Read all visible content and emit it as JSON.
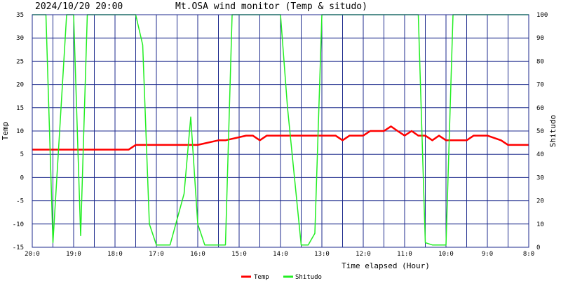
{
  "chart_data": {
    "type": "line",
    "title": "Mt.OSA wind monitor (Temp & situdo)",
    "timestamp": "2024/10/20 20:00",
    "xlabel": "Time elapsed (Hour)",
    "ylabel_left": "Temp",
    "ylabel_right": "Shitudo",
    "x_ticks": [
      "20:0",
      "19:0",
      "18:0",
      "17:0",
      "16:0",
      "15:0",
      "14:0",
      "13:0",
      "12:0",
      "11:0",
      "10:0",
      "9:0",
      "8:0"
    ],
    "x_range": [
      0,
      12
    ],
    "ylim_left": [
      -15,
      35
    ],
    "y_ticks_left": [
      35,
      30,
      25,
      20,
      15,
      10,
      5,
      0,
      -5,
      -10,
      -15
    ],
    "ylim_right": [
      0,
      100
    ],
    "y_ticks_right": [
      100,
      90,
      80,
      70,
      60,
      50,
      40,
      30,
      20,
      10,
      0
    ],
    "grid": true,
    "legend_placement": "bottom-center",
    "colors": {
      "grid": "#1c2a8c",
      "temp": "#ff0000",
      "shitudo": "#22ee22"
    },
    "series": [
      {
        "name": "Temp",
        "axis": "left",
        "x": [
          0,
          2.33,
          2.5,
          3.83,
          4.0,
          4.5,
          4.67,
          5.17,
          5.33,
          5.5,
          5.67,
          7.33,
          7.5,
          7.67,
          8.0,
          8.17,
          8.5,
          8.67,
          8.83,
          9.0,
          9.17,
          9.33,
          9.5,
          9.67,
          9.83,
          10.0,
          10.17,
          10.33,
          10.5,
          10.67,
          10.83,
          11.0,
          11.33,
          11.5,
          12.0
        ],
        "values": [
          6,
          6,
          7,
          7,
          7,
          8,
          8,
          9,
          9,
          8,
          9,
          9,
          8,
          9,
          9,
          10,
          10,
          11,
          10,
          9,
          10,
          9,
          9,
          8,
          9,
          8,
          8,
          8,
          8,
          9,
          9,
          9,
          8,
          7,
          7
        ]
      },
      {
        "name": "Shitudo",
        "axis": "right",
        "x": [
          0,
          0.33,
          0.5,
          0.83,
          1.0,
          1.17,
          1.33,
          1.5,
          2.5,
          2.67,
          2.83,
          3.0,
          3.33,
          3.67,
          3.83,
          4.0,
          4.17,
          4.33,
          4.67,
          4.83,
          5.0,
          6.0,
          6.17,
          6.5,
          6.67,
          6.83,
          7.0,
          9.33,
          9.5,
          9.67,
          10.0,
          10.17,
          12.0
        ],
        "values": [
          100,
          100,
          2,
          100,
          100,
          5,
          100,
          100,
          100,
          87,
          10,
          1,
          1,
          23,
          56,
          10,
          1,
          1,
          1,
          100,
          100,
          100,
          60,
          1,
          1,
          6,
          100,
          100,
          2,
          1,
          1,
          100,
          100
        ]
      }
    ]
  }
}
